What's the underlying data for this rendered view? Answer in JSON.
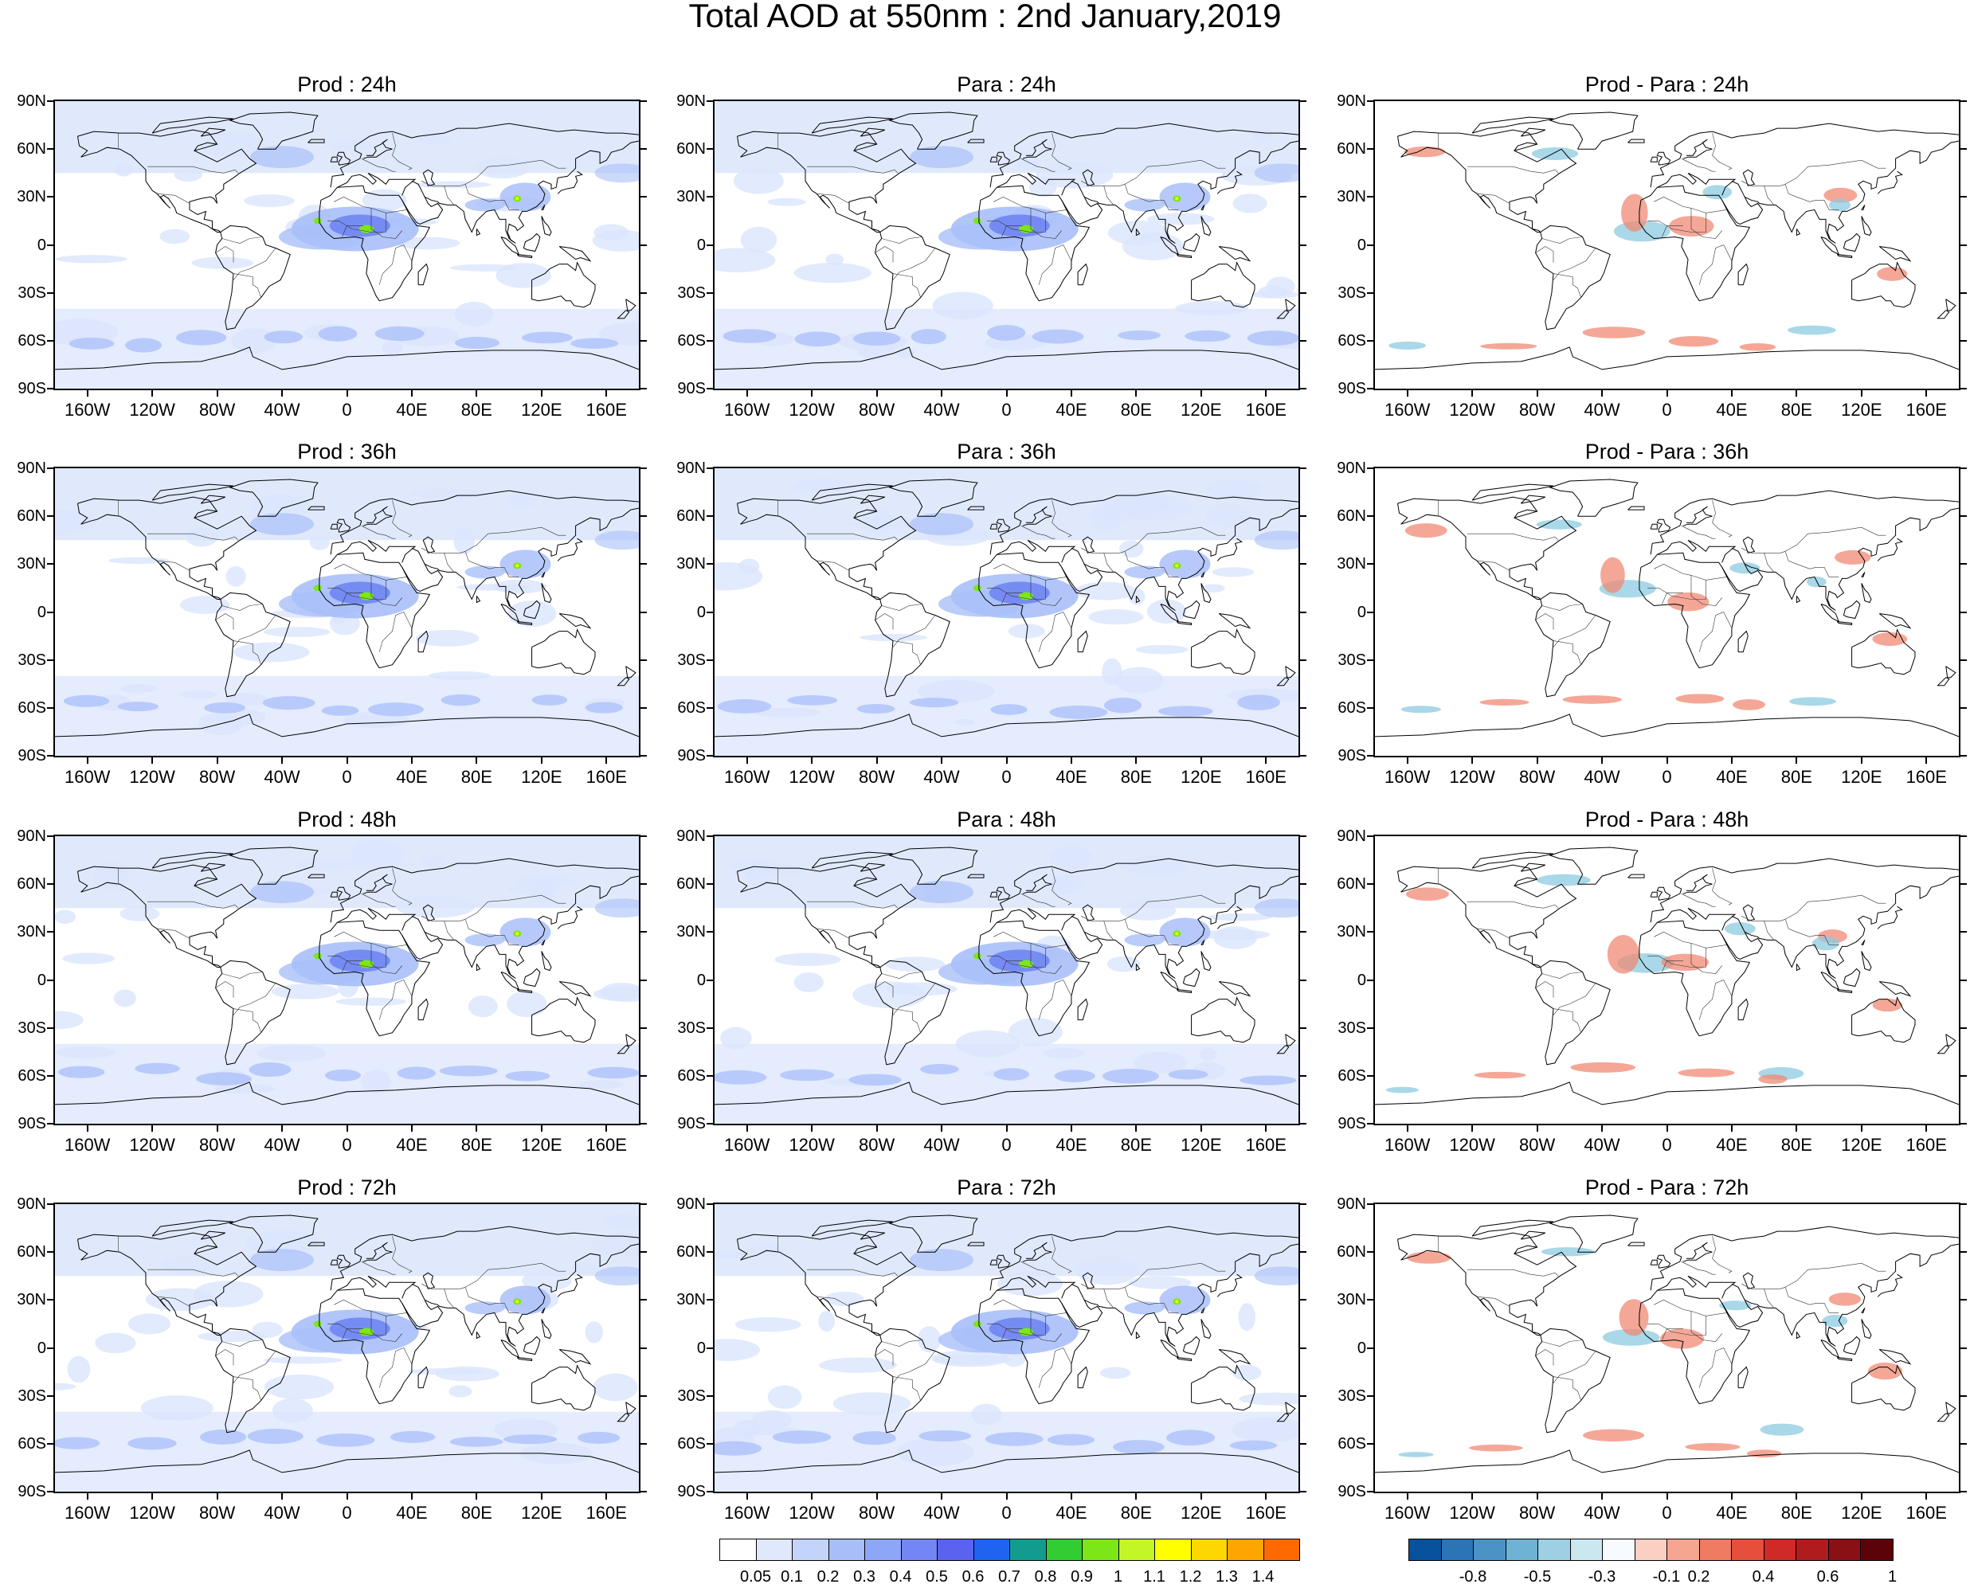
{
  "title": "Total AOD at 550nm : 2nd January,2019",
  "panels": [
    {
      "title": "Prod : 24h",
      "kind": "aod"
    },
    {
      "title": "Para : 24h",
      "kind": "aod"
    },
    {
      "title": "Prod - Para : 24h",
      "kind": "diff"
    },
    {
      "title": "Prod : 36h",
      "kind": "aod"
    },
    {
      "title": "Para : 36h",
      "kind": "aod"
    },
    {
      "title": "Prod - Para : 36h",
      "kind": "diff"
    },
    {
      "title": "Prod : 48h",
      "kind": "aod"
    },
    {
      "title": "Para : 48h",
      "kind": "aod"
    },
    {
      "title": "Prod - Para : 48h",
      "kind": "diff"
    },
    {
      "title": "Prod : 72h",
      "kind": "aod"
    },
    {
      "title": "Para : 72h",
      "kind": "aod"
    },
    {
      "title": "Prod - Para : 72h",
      "kind": "diff"
    }
  ],
  "lat_labels": [
    "90N",
    "60N",
    "30N",
    "0",
    "30S",
    "60S",
    "90S"
  ],
  "lon_labels": [
    "160W",
    "120W",
    "80W",
    "40W",
    "0",
    "40E",
    "80E",
    "120E",
    "160E"
  ],
  "aod_colorbar": {
    "labels": [
      "0.05",
      "0.1",
      "0.2",
      "0.3",
      "0.4",
      "0.5",
      "0.6",
      "0.7",
      "0.8",
      "0.9",
      "1",
      "1.1",
      "1.2",
      "1.3",
      "1.4"
    ],
    "colors": [
      "#ffffff",
      "#dfe8fc",
      "#c3d4fb",
      "#a8bef9",
      "#8ea6f7",
      "#7386f3",
      "#5a62ef",
      "#1e64f0",
      "#129c8f",
      "#32cd32",
      "#7ce617",
      "#c3f527",
      "#ffff00",
      "#ffd700",
      "#ffa500",
      "#ff6a00"
    ]
  },
  "diff_colorbar": {
    "labels": [
      "-0.8",
      "-0.5",
      "-0.3",
      "-0.1",
      "0.2",
      "0.4",
      "0.6",
      "1"
    ],
    "colors": [
      "#08519c",
      "#2b74b5",
      "#4a93c6",
      "#6eb2d4",
      "#9cd0e2",
      "#cbe8f1",
      "#f7fbff",
      "#fbd0c4",
      "#f6a590",
      "#ef7b62",
      "#e5503d",
      "#d02a28",
      "#b01c1e",
      "#8a1015",
      "#5c0309"
    ]
  },
  "map_colors": {
    "aod_light": "#dbe5fc",
    "aod_mid": "#a9bff9",
    "aod_strong": "#6f85f2",
    "aod_peak_green": "#7ce617",
    "aod_peak_yellow": "#ffff00",
    "diff_red": "#f08a74",
    "diff_blue": "#8ccbe0",
    "coast": "#000000"
  }
}
